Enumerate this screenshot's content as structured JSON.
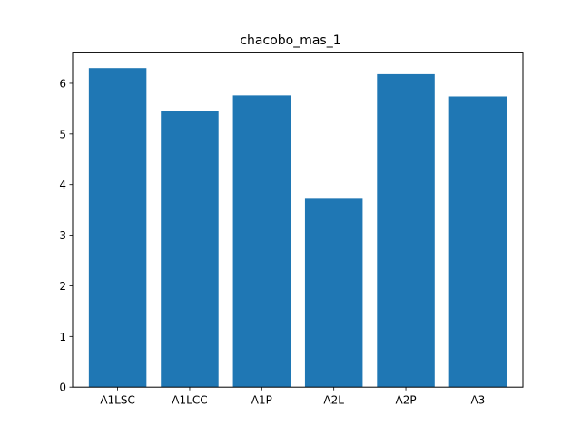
{
  "chart_data": {
    "type": "bar",
    "title": "chacobo_mas_1",
    "xlabel": "",
    "ylabel": "",
    "categories": [
      "A1LSC",
      "A1LCC",
      "A1P",
      "A2L",
      "A2P",
      "A3"
    ],
    "values": [
      6.3,
      5.46,
      5.76,
      3.72,
      6.18,
      5.74
    ],
    "ylim": [
      0,
      6.615
    ],
    "yticks": [
      0,
      1,
      2,
      3,
      4,
      5,
      6
    ],
    "grid": false,
    "legend": "none",
    "bar_color": "#1f77b4"
  }
}
